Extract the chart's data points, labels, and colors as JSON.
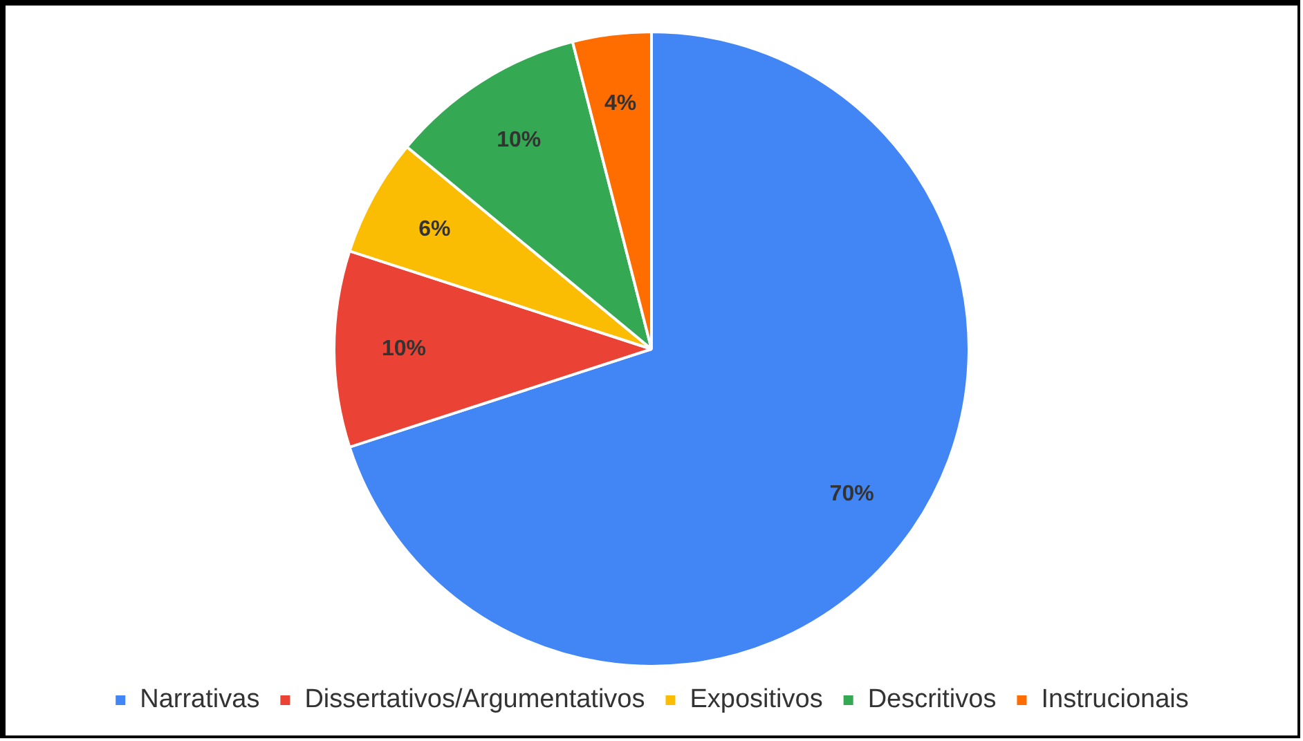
{
  "chart_data": {
    "type": "pie",
    "categories": [
      "Narrativas",
      "Dissertativos/Argumentativos",
      "Expositivos",
      "Descritivos",
      "Instrucionais"
    ],
    "values": [
      70,
      10,
      6,
      10,
      4
    ],
    "colors": [
      "#4285f4",
      "#ea4335",
      "#fbbc04",
      "#34a853",
      "#ff6d01"
    ],
    "value_labels": [
      "70%",
      "10%",
      "6%",
      "10%",
      "4%"
    ],
    "legend": "bottom"
  }
}
